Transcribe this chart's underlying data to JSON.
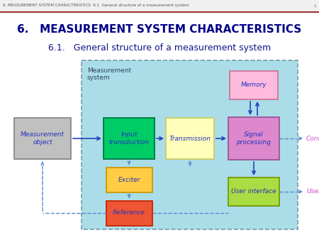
{
  "title1": "6.   MEASUREMENT SYSTEM CHARACTERISTICS",
  "title2": "6.1.   General structure of a measurement system",
  "bg_color": "#ffffff",
  "diagram_bg": "#aadde8",
  "diagram_border": "#7799aa",
  "boxes": {
    "measurement_object": {
      "label": "Measurement\nobject",
      "facecolor": "#c0c0c0",
      "edgecolor": "#888888",
      "fontcolor": "#2233bb",
      "fontsize": 6.5
    },
    "input_transduction": {
      "label": "Input\ntransduction",
      "facecolor": "#00cc66",
      "edgecolor": "#007744",
      "fontcolor": "#2233bb",
      "fontsize": 6.5
    },
    "transmission": {
      "label": "Transmission",
      "facecolor": "#ffffbb",
      "edgecolor": "#cccc66",
      "fontcolor": "#2233bb",
      "fontsize": 6.5
    },
    "signal_processing": {
      "label": "Signal\nprocessing",
      "facecolor": "#dd88cc",
      "edgecolor": "#995599",
      "fontcolor": "#2233bb",
      "fontsize": 6.5
    },
    "memory": {
      "label": "Memory",
      "facecolor": "#ffbbdd",
      "edgecolor": "#cc7799",
      "fontcolor": "#2233bb",
      "fontsize": 6.5
    },
    "exciter": {
      "label": "Exciter",
      "facecolor": "#ffcc44",
      "edgecolor": "#cc9900",
      "fontcolor": "#2233bb",
      "fontsize": 6.5
    },
    "reference": {
      "label": "Reference",
      "facecolor": "#ee5533",
      "edgecolor": "#cc2200",
      "fontcolor": "#2233bb",
      "fontsize": 6.5
    },
    "user_interface": {
      "label": "User interface",
      "facecolor": "#aadd44",
      "edgecolor": "#779900",
      "fontcolor": "#2233bb",
      "fontsize": 6.5
    }
  },
  "meas_sys_label": "Measurement\nsystem",
  "control_label": "Control",
  "user_label": "User",
  "title1_fontsize": 11,
  "title2_fontsize": 9,
  "title1_color": "#000088",
  "title2_color": "#111188",
  "arrow_color": "#2244bb",
  "dashed_color": "#5588cc"
}
